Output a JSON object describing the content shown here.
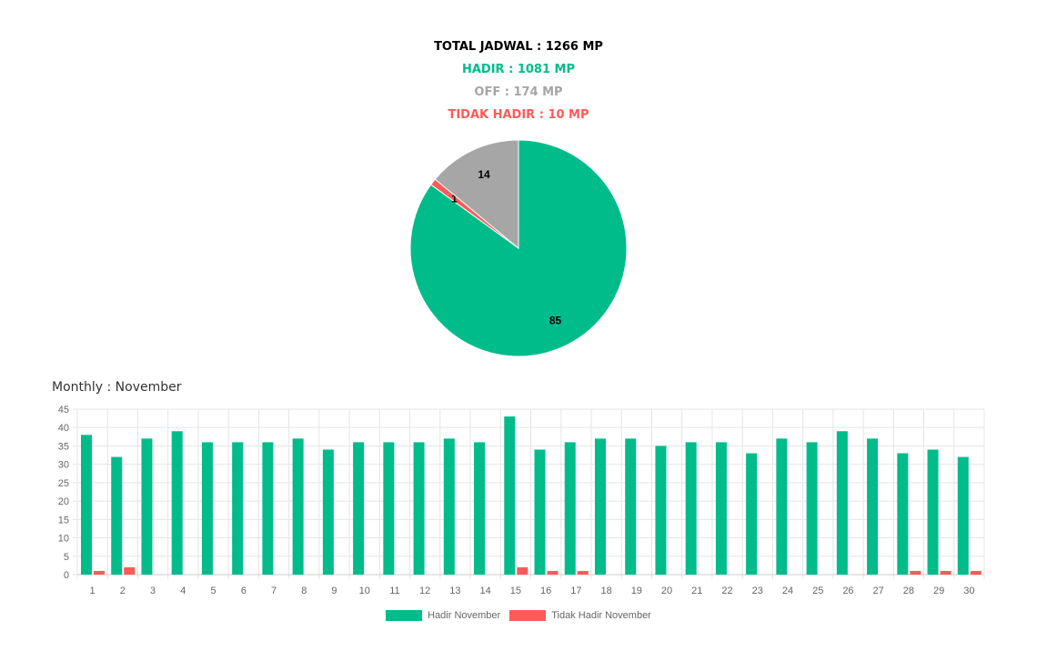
{
  "summary": {
    "total": "TOTAL JADWAL : 1266 MP",
    "hadir": "HADIR : 1081 MP",
    "off": "OFF : 174 MP",
    "tidak_hadir": "TIDAK HADIR : 10 MP"
  },
  "colors": {
    "hadir": "#00BC8B",
    "off": "#A6A6A6",
    "tidak_hadir": "#FF5A5A",
    "total": "#000000"
  },
  "chart_data": [
    {
      "type": "pie",
      "categories": [
        "Hadir",
        "Tidak Hadir",
        "Off"
      ],
      "values": [
        85,
        1,
        14
      ],
      "labels": [
        "85",
        "1",
        "14"
      ]
    },
    {
      "type": "bar",
      "title": "Monthly : November",
      "categories": [
        "1",
        "2",
        "3",
        "4",
        "5",
        "6",
        "7",
        "8",
        "9",
        "10",
        "11",
        "12",
        "13",
        "14",
        "15",
        "16",
        "17",
        "18",
        "19",
        "20",
        "21",
        "22",
        "23",
        "24",
        "25",
        "26",
        "27",
        "28",
        "29",
        "30"
      ],
      "series": [
        {
          "name": "Hadir November",
          "values": [
            38,
            32,
            37,
            39,
            36,
            36,
            36,
            37,
            34,
            36,
            36,
            36,
            37,
            36,
            43,
            34,
            36,
            37,
            37,
            35,
            36,
            36,
            33,
            37,
            36,
            39,
            37,
            33,
            34,
            32
          ]
        },
        {
          "name": "Tidak Hadir November",
          "values": [
            1,
            2,
            0,
            0,
            0,
            0,
            0,
            0,
            0,
            0,
            0,
            0,
            0,
            0,
            2,
            1,
            1,
            0,
            0,
            0,
            0,
            0,
            0,
            0,
            0,
            0,
            0,
            1,
            1,
            1
          ]
        }
      ],
      "ylim": [
        0,
        45
      ],
      "yticks": [
        0,
        5,
        10,
        15,
        20,
        25,
        30,
        35,
        40,
        45
      ],
      "grid": true,
      "legend": "bottom"
    }
  ]
}
